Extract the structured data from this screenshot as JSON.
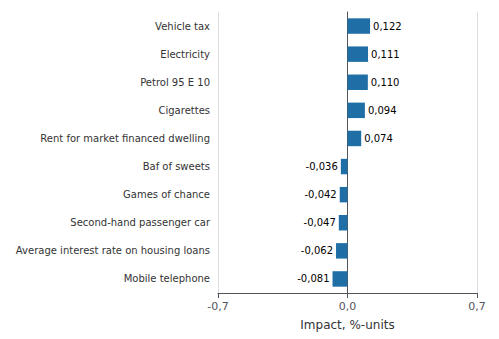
{
  "chart_data": {
    "type": "bar",
    "orientation": "horizontal",
    "categories": [
      "Mobile telephone",
      "Average interest rate on housing loans",
      "Second-hand passenger car",
      "Games of chance",
      "Baf of sweets",
      "Rent for market financed dwelling",
      "Cigarettes",
      "Petrol 95 E 10",
      "Electricity",
      "Vehicle tax"
    ],
    "values": [
      -0.081,
      -0.062,
      -0.047,
      -0.042,
      -0.036,
      0.074,
      0.094,
      0.11,
      0.111,
      0.122
    ],
    "value_labels": [
      "-0,081",
      "-0,062",
      "-0,047",
      "-0,042",
      "-0,036",
      "0,074",
      "0,094",
      "0,110",
      "0,111",
      "0,122"
    ],
    "data_labels": true,
    "color": "#1F6EA6",
    "xlabel": "Impact, %-units",
    "xlim": [
      -0.7,
      0.7
    ],
    "xticks": [
      {
        "value": -0.7,
        "label": "-0,7"
      },
      {
        "value": 0,
        "label": "0,0"
      },
      {
        "value": 0.7,
        "label": "0,7"
      }
    ],
    "grid": true
  }
}
